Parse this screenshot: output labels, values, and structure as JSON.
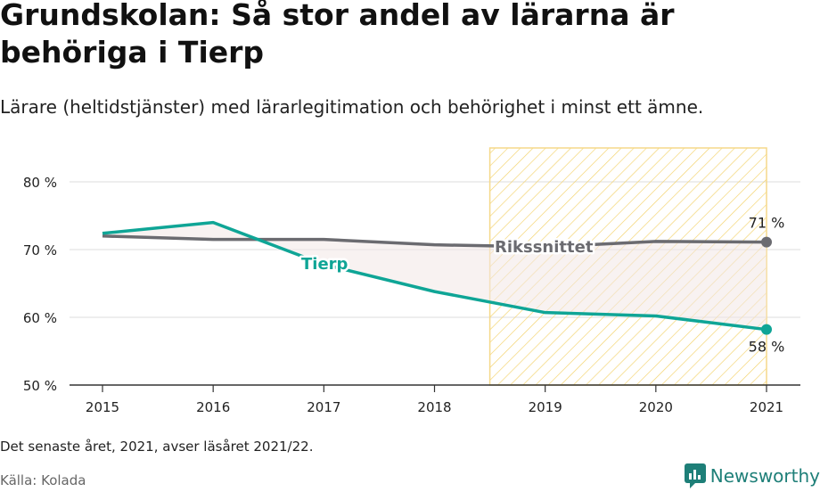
{
  "header": {
    "title": "Grundskolan: Så stor andel av lärarna är behöriga i Tierp",
    "subtitle": "Lärare (heltidstjänster) med lärarlegitimation och behörighet i minst ett ämne."
  },
  "footer": {
    "note": "Det senaste året, 2021, avser läsåret 2021/22.",
    "source": "Källa: Kolada",
    "brand": "Newsworthy"
  },
  "colors": {
    "tierp": "#0fa596",
    "riks": "#6b6b70",
    "highlight_stroke": "#f5d98a",
    "highlight_hatch": "#f3d26a",
    "gap_fill": "#f2e8e5",
    "brand": "#1e7f78"
  },
  "chart_data": {
    "type": "line",
    "title": "Grundskolan: Så stor andel av lärarna är behöriga i Tierp",
    "x": [
      2015,
      2016,
      2017,
      2018,
      2019,
      2020,
      2021
    ],
    "ylim": [
      50,
      85
    ],
    "y_ticks": [
      "80 %",
      "70 %",
      "60 %",
      "50 %"
    ],
    "y_tick_values": [
      80,
      70,
      60,
      50
    ],
    "x_tick_labels": [
      "2015",
      "2016",
      "2017",
      "2018",
      "2019",
      "2020",
      "2021"
    ],
    "grid": true,
    "highlight_range": [
      2018.5,
      2021
    ],
    "series": [
      {
        "name": "Rikssnittet",
        "key": "riks",
        "values": [
          72.0,
          71.5,
          71.5,
          70.7,
          70.4,
          71.2,
          71.1
        ],
        "end_label": "71 %"
      },
      {
        "name": "Tierp",
        "key": "tierp",
        "values": [
          72.4,
          74.0,
          67.8,
          63.8,
          60.7,
          60.2,
          58.2
        ],
        "end_label": "58 %"
      }
    ]
  }
}
